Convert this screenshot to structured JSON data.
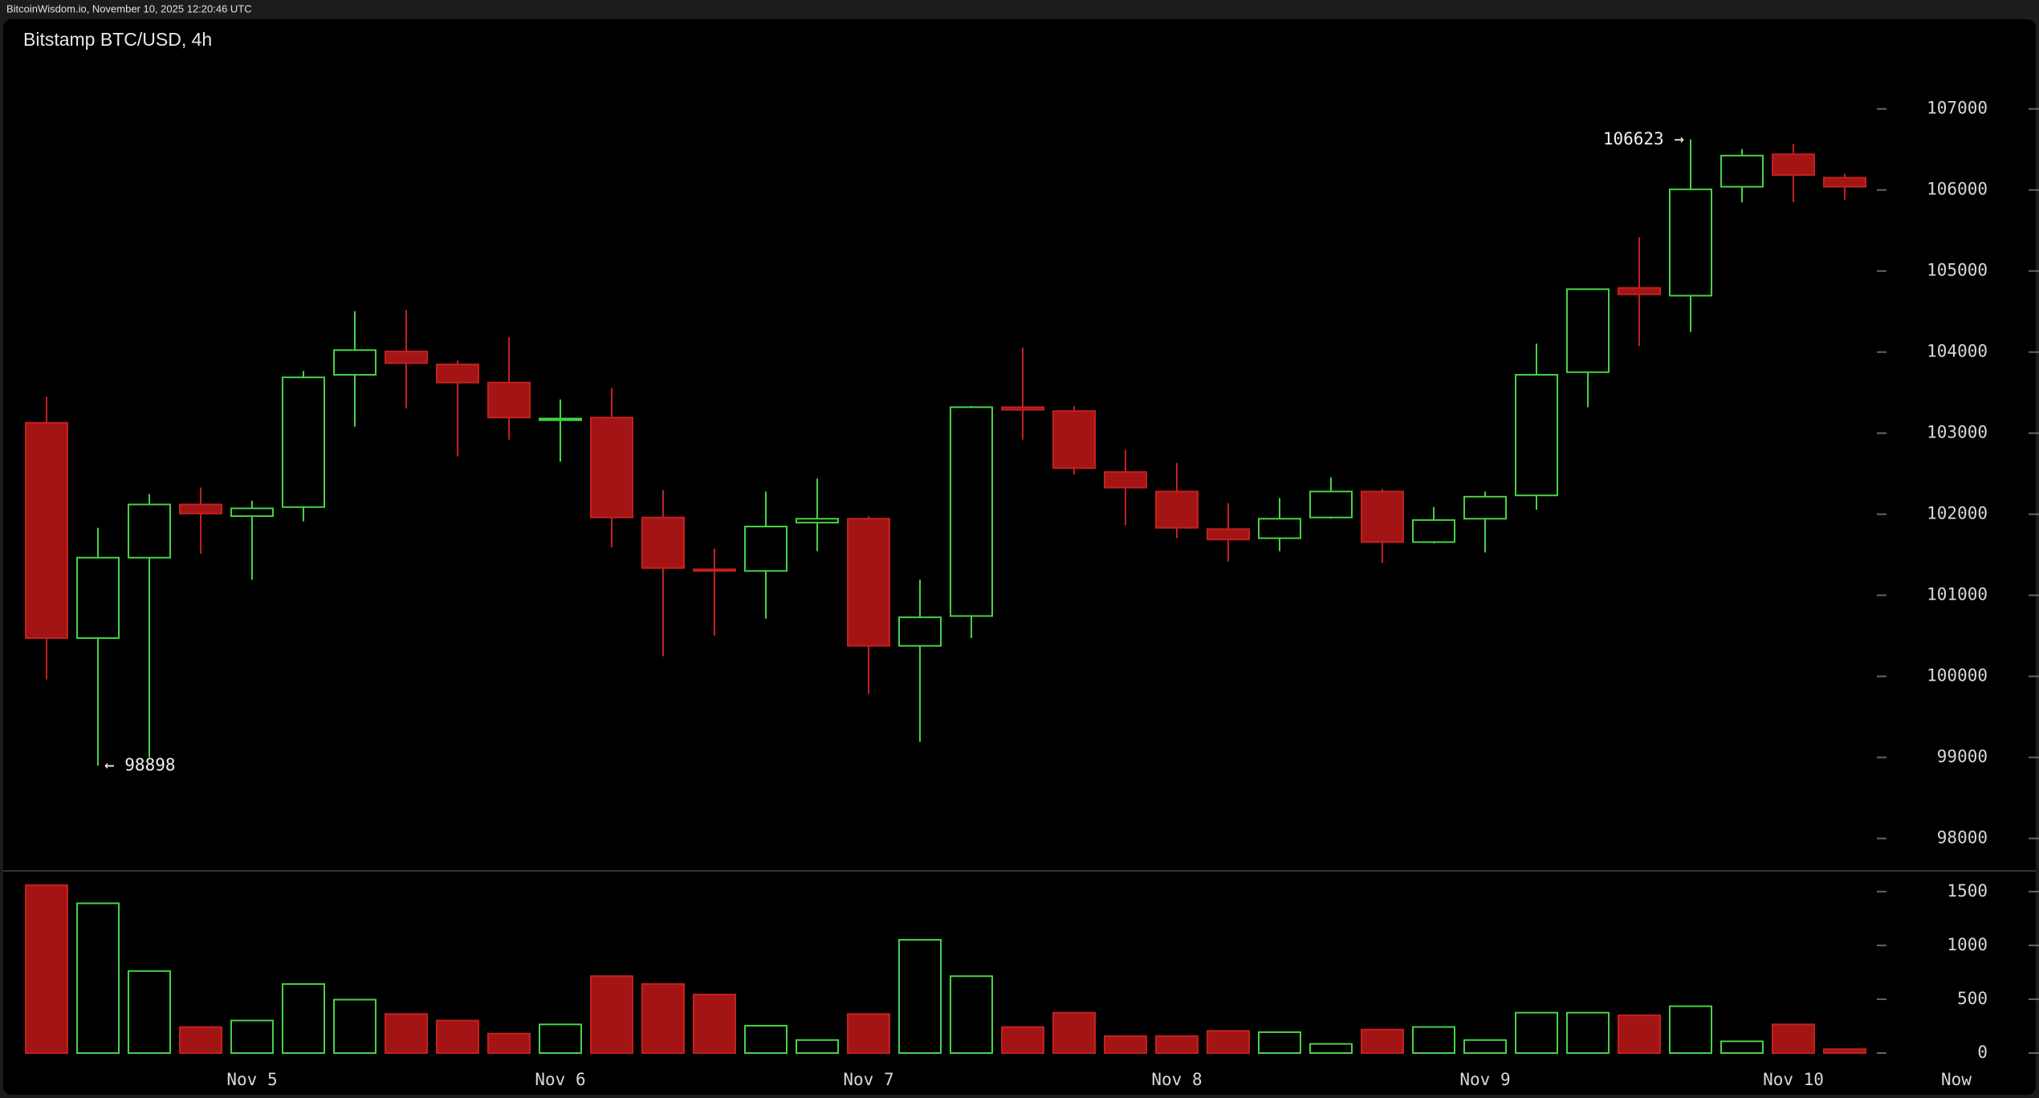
{
  "header": "BitcoinWisdom.io, November 10, 2025 12:20:46 UTC",
  "chart_data": {
    "type": "candlestick",
    "title": "Bitstamp BTC/USD, 4h",
    "categories": [
      null,
      null,
      null,
      null,
      "Nov 5",
      null,
      null,
      null,
      null,
      null,
      "Nov 6",
      null,
      null,
      null,
      null,
      null,
      "Nov 7",
      null,
      null,
      null,
      null,
      null,
      "Nov 8",
      null,
      null,
      null,
      null,
      null,
      "Nov 9",
      null,
      null,
      null,
      null,
      null,
      "Nov 10",
      null
    ],
    "now_label": "Now",
    "open": [
      103128,
      100472,
      101464,
      102120,
      101976,
      102088,
      103720,
      104008,
      103848,
      103624,
      103176,
      103192,
      101960,
      101320,
      101300,
      101896,
      101944,
      100376,
      100744,
      103320,
      103272,
      102520,
      102280,
      101816,
      101704,
      101960,
      102280,
      101656,
      101944,
      102232,
      103752,
      104792,
      104696,
      106040,
      106440,
      106152
    ],
    "high": [
      103448,
      101832,
      102248,
      102328,
      102168,
      103768,
      104504,
      104520,
      103896,
      104184,
      103416,
      103560,
      102296,
      101576,
      102280,
      102440,
      101976,
      101192,
      103336,
      104056,
      103336,
      102792,
      102632,
      102136,
      102200,
      102456,
      102312,
      102088,
      102280,
      104104,
      104776,
      105416,
      106623,
      106504,
      106568,
      106200
    ],
    "low": [
      99960,
      98898,
      99000,
      101512,
      101192,
      101912,
      103080,
      103304,
      102712,
      102920,
      102648,
      101592,
      100248,
      100504,
      100712,
      101544,
      99784,
      99192,
      100472,
      102920,
      102488,
      101864,
      101704,
      101416,
      101544,
      101944,
      101400,
      101640,
      101528,
      102056,
      103320,
      104072,
      104248,
      105848,
      105848,
      105880
    ],
    "close": [
      100472,
      101464,
      102120,
      102008,
      102072,
      103688,
      104024,
      103864,
      103624,
      103192,
      103180,
      101960,
      101336,
      101300,
      101848,
      101944,
      100376,
      100728,
      103320,
      103288,
      102568,
      102328,
      101832,
      101688,
      101944,
      102280,
      101656,
      101928,
      102216,
      103720,
      104776,
      104712,
      106008,
      106424,
      106184,
      106040
    ],
    "volume": [
      1560,
      1391,
      762,
      242,
      302,
      641,
      496,
      363,
      302,
      181,
      266,
      714,
      641,
      544,
      254,
      121,
      363,
      1052,
      714,
      242,
      375,
      157,
      157,
      206,
      194,
      85,
      218,
      242,
      121,
      375,
      375,
      351,
      435,
      109,
      266,
      36
    ],
    "up_color": "#46d246",
    "down_color": "#a31515",
    "annotations": {
      "max_label": "106623 →",
      "min_label": "← 98898"
    },
    "ylim": [
      97600,
      107700
    ],
    "yticks": [
      98000,
      99000,
      100000,
      101000,
      102000,
      103000,
      104000,
      105000,
      106000,
      107000
    ],
    "vol_ylim": [
      0,
      1670
    ],
    "vol_yticks": [
      0,
      500,
      1000,
      1500
    ]
  }
}
